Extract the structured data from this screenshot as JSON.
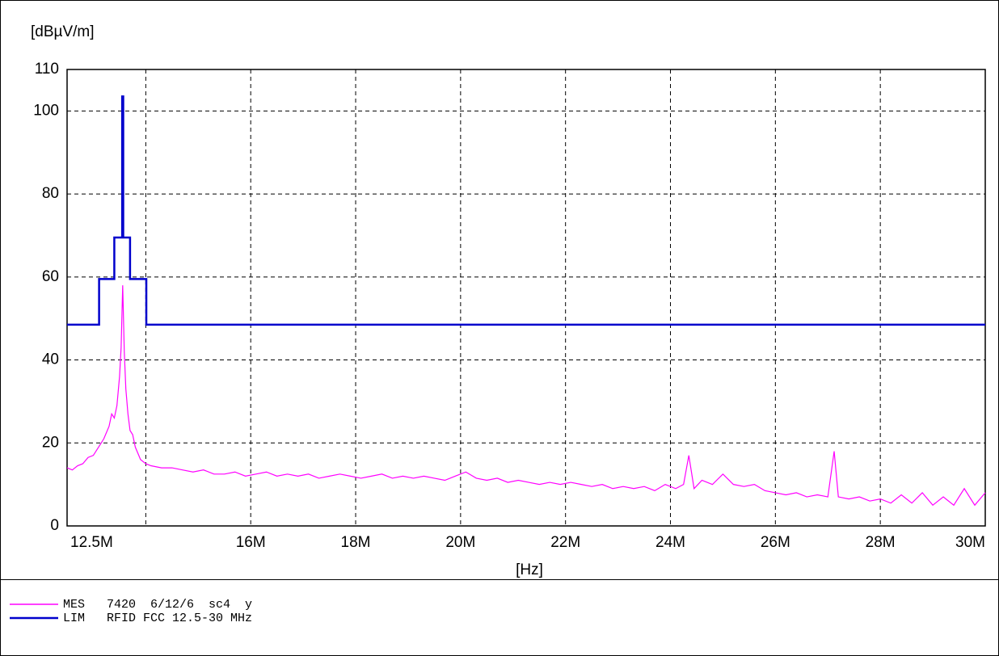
{
  "chart_data": {
    "type": "line",
    "ylabel": "[dBµV/m]",
    "xlabel": "[Hz]",
    "xlim": [
      12.5,
      30
    ],
    "ylim": [
      0,
      110
    ],
    "xticks": [
      {
        "value": 12.5,
        "label": "12.5M"
      },
      {
        "value": 14,
        "label": null
      },
      {
        "value": 16,
        "label": "16M"
      },
      {
        "value": 18,
        "label": "18M"
      },
      {
        "value": 20,
        "label": "20M"
      },
      {
        "value": 22,
        "label": "22M"
      },
      {
        "value": 24,
        "label": "24M"
      },
      {
        "value": 26,
        "label": "26M"
      },
      {
        "value": 28,
        "label": "28M"
      },
      {
        "value": 30,
        "label": "30M"
      }
    ],
    "yticks": [
      0,
      20,
      40,
      60,
      80,
      100,
      110
    ],
    "grid": true,
    "series": [
      {
        "name": "MES   7420  6/12/6  sc4  y",
        "color": "#ff00ff",
        "x": [
          12.5,
          12.6,
          12.7,
          12.8,
          12.9,
          13.0,
          13.1,
          13.2,
          13.3,
          13.35,
          13.4,
          13.45,
          13.5,
          13.53,
          13.56,
          13.59,
          13.62,
          13.66,
          13.7,
          13.75,
          13.8,
          13.9,
          14.0,
          14.1,
          14.3,
          14.5,
          14.7,
          14.9,
          15.1,
          15.3,
          15.5,
          15.7,
          15.9,
          16.1,
          16.3,
          16.5,
          16.7,
          16.9,
          17.1,
          17.3,
          17.5,
          17.7,
          17.9,
          18.1,
          18.3,
          18.5,
          18.7,
          18.9,
          19.1,
          19.3,
          19.5,
          19.7,
          19.9,
          20.1,
          20.3,
          20.5,
          20.7,
          20.9,
          21.1,
          21.3,
          21.5,
          21.7,
          21.9,
          22.1,
          22.3,
          22.5,
          22.7,
          22.9,
          23.1,
          23.3,
          23.5,
          23.7,
          23.9,
          24.1,
          24.25,
          24.35,
          24.45,
          24.6,
          24.8,
          25.0,
          25.2,
          25.4,
          25.6,
          25.8,
          26.0,
          26.2,
          26.4,
          26.6,
          26.8,
          27.0,
          27.12,
          27.2,
          27.4,
          27.6,
          27.8,
          28.0,
          28.2,
          28.4,
          28.6,
          28.8,
          29.0,
          29.2,
          29.4,
          29.6,
          29.8,
          30.0
        ],
        "values": [
          14,
          13.5,
          14.5,
          15,
          16.5,
          17,
          19,
          21,
          24,
          27,
          26,
          29,
          36,
          43,
          58,
          42,
          33,
          27,
          23,
          22,
          19,
          16,
          15,
          14.5,
          14,
          14,
          13.5,
          13,
          13.5,
          12.5,
          12.5,
          13,
          12,
          12.5,
          13,
          12,
          12.5,
          12,
          12.5,
          11.5,
          12,
          12.5,
          12,
          11.5,
          12,
          12.5,
          11.5,
          12,
          11.5,
          12,
          11.5,
          11,
          12,
          13,
          11.5,
          11,
          11.5,
          10.5,
          11,
          10.5,
          10,
          10.5,
          10,
          10.5,
          10,
          9.5,
          10,
          9,
          9.5,
          9,
          9.5,
          8.5,
          10,
          9,
          10,
          17,
          9,
          11,
          10,
          12.5,
          10,
          9.5,
          10,
          8.5,
          8,
          7.5,
          8,
          7,
          7.5,
          7,
          18,
          7,
          6.5,
          7,
          6,
          6.5,
          5.5,
          7.5,
          5.5,
          8,
          5,
          7,
          5,
          9,
          5,
          8
        ]
      },
      {
        "name": "LIM   RFID FCC 12.5-30 MHz",
        "color": "#0000cc",
        "x": [
          12.5,
          13.11,
          13.11,
          13.4,
          13.4,
          13.55,
          13.55,
          13.57,
          13.57,
          13.7,
          13.7,
          14.01,
          14.01,
          30
        ],
        "values": [
          48.5,
          48.5,
          59.5,
          59.5,
          69.5,
          69.5,
          103.5,
          103.5,
          69.5,
          69.5,
          59.5,
          59.5,
          48.5,
          48.5
        ]
      }
    ]
  }
}
